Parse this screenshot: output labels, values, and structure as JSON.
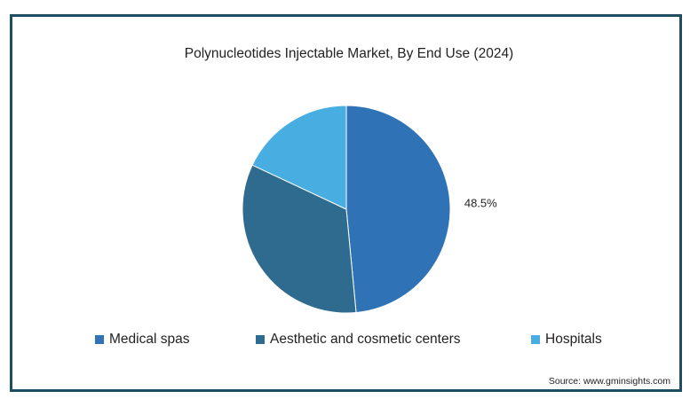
{
  "chart_data": {
    "type": "pie",
    "title": "Polynucleotides Injectable Market, By End Use (2024)",
    "slices": [
      {
        "name": "Medical spas",
        "value": 48.5,
        "label": "48.5%",
        "color": "#2f73b6"
      },
      {
        "name": "Aesthetic and cosmetic centers",
        "value": 33.5,
        "label": "",
        "color": "#2e6b8e"
      },
      {
        "name": "Hospitals",
        "value": 18.0,
        "label": "",
        "color": "#48ade0"
      }
    ],
    "legend_position": "bottom"
  },
  "source": "Source: www.gminsights.com"
}
